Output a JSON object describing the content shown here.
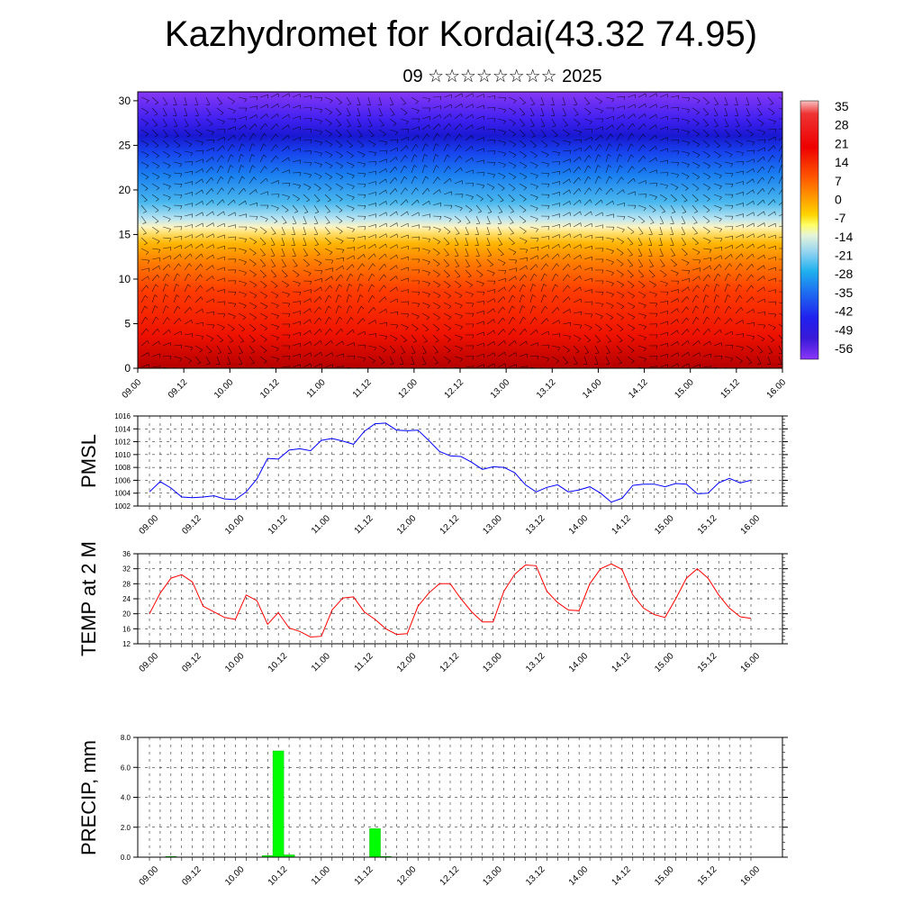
{
  "title": "Kazhydromet for Kordai(43.32 74.95)",
  "subtitle": "09 ☆☆☆☆☆☆☆☆ 2025",
  "time_labels": [
    "09.00",
    "09.12",
    "10.00",
    "10.12",
    "11.00",
    "11.12",
    "12.00",
    "12.12",
    "13.00",
    "13.12",
    "14.00",
    "14.12",
    "15.00",
    "15.12",
    "16.00"
  ],
  "colors": {
    "pmsl": "#0000ff",
    "temp": "#ff0000",
    "precip": "#00ff00"
  },
  "chart_data": [
    {
      "id": "cross-section",
      "type": "heatmap",
      "y_ticks": [
        0,
        5,
        10,
        15,
        20,
        25,
        30
      ],
      "ylim": [
        0,
        31
      ],
      "colorbar": {
        "labels": [
          "35",
          "28",
          "21",
          "14",
          "7",
          "0",
          "-7",
          "-14",
          "-21",
          "-28",
          "-35",
          "-42",
          "-49",
          "-56"
        ]
      }
    },
    {
      "id": "pmsl",
      "type": "line",
      "ylabel": "PMSL",
      "ylim": [
        1002,
        1016
      ],
      "y_ticks": [
        1002,
        1004,
        1006,
        1008,
        1010,
        1012,
        1014,
        1016
      ],
      "values": [
        1004.2,
        1005.8,
        1004.8,
        1003.4,
        1003.3,
        1003.4,
        1003.6,
        1003.1,
        1003.0,
        1004.2,
        1006.2,
        1009.4,
        1009.3,
        1010.7,
        1010.9,
        1010.6,
        1012.2,
        1012.5,
        1012.1,
        1011.6,
        1013.6,
        1014.8,
        1014.9,
        1013.8,
        1013.7,
        1013.8,
        1012.2,
        1010.5,
        1009.8,
        1009.7,
        1008.8,
        1007.7,
        1008.1,
        1008.0,
        1007.2,
        1005.3,
        1004.2,
        1004.9,
        1005.3,
        1004.2,
        1004.5,
        1005.0,
        1004.0,
        1002.6,
        1003.2,
        1005.2,
        1005.4,
        1005.4,
        1005.0,
        1005.5,
        1005.4,
        1003.9,
        1004.0,
        1005.6,
        1006.3,
        1005.6,
        1006.0
      ]
    },
    {
      "id": "temp",
      "type": "line",
      "ylabel": "TEMP at 2 M",
      "ylim": [
        12,
        36
      ],
      "y_ticks": [
        12,
        16,
        20,
        24,
        28,
        32,
        36
      ],
      "values": [
        20.0,
        25.5,
        29.5,
        30.4,
        28.5,
        22.0,
        20.5,
        19.0,
        18.5,
        25.0,
        23.5,
        17.2,
        20.3,
        16.2,
        15.3,
        13.8,
        14.0,
        21.0,
        24.2,
        24.5,
        20.5,
        18.5,
        16.0,
        14.5,
        14.7,
        22.0,
        25.5,
        28.0,
        28.0,
        24.0,
        20.5,
        17.8,
        17.8,
        26.0,
        30.5,
        33.0,
        32.8,
        26.0,
        23.0,
        21.0,
        20.8,
        28.0,
        32.0,
        33.3,
        31.8,
        25.0,
        21.5,
        19.8,
        19.0,
        24.0,
        29.5,
        32.0,
        29.5,
        25.0,
        21.5,
        19.2,
        18.8
      ]
    },
    {
      "id": "precip",
      "type": "bar",
      "ylabel": "PRECIP, mm",
      "ylim": [
        0,
        8
      ],
      "y_ticks": [
        "0.0",
        "2.0",
        "4.0",
        "6.0",
        "8.0"
      ],
      "values": [
        0,
        0,
        0.05,
        0,
        0,
        0,
        0,
        0,
        0,
        0,
        0,
        0.1,
        7.1,
        0.15,
        0,
        0,
        0,
        0,
        0,
        0,
        0,
        1.9,
        0.05,
        0,
        0,
        0,
        0,
        0,
        0,
        0,
        0,
        0,
        0,
        0,
        0,
        0,
        0,
        0,
        0,
        0,
        0,
        0,
        0,
        0,
        0,
        0,
        0,
        0,
        0,
        0,
        0,
        0,
        0,
        0,
        0,
        0,
        0
      ]
    }
  ]
}
